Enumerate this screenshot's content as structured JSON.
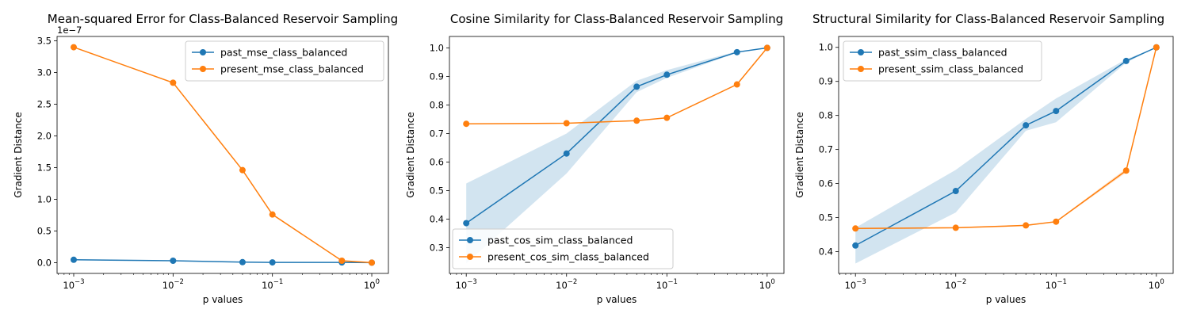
{
  "colors": {
    "past": "#1f77b4",
    "present": "#ff7f0e",
    "band": "#1f77b4"
  },
  "chart_data": [
    {
      "type": "line",
      "title": "Mean-squared Error for Class-Balanced Reservoir Sampling",
      "xlabel": "p values",
      "ylabel": "Gradient Distance",
      "xscale": "log",
      "xlim": [
        0.00068,
        1.47
      ],
      "ylim": [
        -1.7e-08,
        3.57e-07
      ],
      "y_offset_label": "1e−7",
      "xticks": [
        {
          "v": 0.001,
          "base": "10",
          "exp": "−3"
        },
        {
          "v": 0.01,
          "base": "10",
          "exp": "−2"
        },
        {
          "v": 0.1,
          "base": "10",
          "exp": "−1"
        },
        {
          "v": 1,
          "base": "10",
          "exp": "0"
        }
      ],
      "yticks": [
        {
          "v": 0,
          "label": "0.0"
        },
        {
          "v": 5e-08,
          "label": "0.5"
        },
        {
          "v": 1e-07,
          "label": "1.0"
        },
        {
          "v": 1.5e-07,
          "label": "1.5"
        },
        {
          "v": 2e-07,
          "label": "2.0"
        },
        {
          "v": 2.5e-07,
          "label": "2.5"
        },
        {
          "v": 3e-07,
          "label": "3.0"
        },
        {
          "v": 3.5e-07,
          "label": "3.5"
        }
      ],
      "legend": "upper-right",
      "x": [
        0.001,
        0.01,
        0.05,
        0.1,
        0.5,
        1
      ],
      "series": [
        {
          "name": "past_mse_class_balanced",
          "key": "past",
          "values": [
            4.5e-09,
            3e-09,
            8e-10,
            4e-10,
            3e-10,
            0
          ]
        },
        {
          "name": "present_mse_class_balanced",
          "key": "present",
          "values": [
            3.4e-07,
            2.84e-07,
            1.46e-07,
            7.6e-08,
            3e-09,
            0
          ]
        }
      ]
    },
    {
      "type": "line",
      "title": "Cosine Similarity for Class-Balanced Reservoir Sampling",
      "xlabel": "p values",
      "ylabel": "Gradient Distance",
      "xscale": "log",
      "xlim": [
        0.00068,
        1.47
      ],
      "ylim": [
        0.21,
        1.04
      ],
      "xticks": [
        {
          "v": 0.001,
          "base": "10",
          "exp": "−3"
        },
        {
          "v": 0.01,
          "base": "10",
          "exp": "−2"
        },
        {
          "v": 0.1,
          "base": "10",
          "exp": "−1"
        },
        {
          "v": 1,
          "base": "10",
          "exp": "0"
        }
      ],
      "yticks": [
        {
          "v": 0.3,
          "label": "0.3"
        },
        {
          "v": 0.4,
          "label": "0.4"
        },
        {
          "v": 0.5,
          "label": "0.5"
        },
        {
          "v": 0.6,
          "label": "0.6"
        },
        {
          "v": 0.7,
          "label": "0.7"
        },
        {
          "v": 0.8,
          "label": "0.8"
        },
        {
          "v": 0.9,
          "label": "0.9"
        },
        {
          "v": 1.0,
          "label": "1.0"
        }
      ],
      "legend": "lower-left",
      "x": [
        0.001,
        0.01,
        0.05,
        0.1,
        0.5,
        1
      ],
      "series": [
        {
          "name": "past_cos_sim_class_balanced",
          "key": "past",
          "values": [
            0.386,
            0.63,
            0.864,
            0.906,
            0.985,
            1.0
          ],
          "band_lower": [
            0.245,
            0.56,
            0.845,
            0.895,
            0.983,
            1.0
          ],
          "band_upper": [
            0.525,
            0.7,
            0.885,
            0.922,
            0.988,
            1.0
          ]
        },
        {
          "name": "present_cos_sim_class_balanced",
          "key": "present",
          "values": [
            0.734,
            0.736,
            0.745,
            0.755,
            0.872,
            1.0
          ]
        }
      ]
    },
    {
      "type": "line",
      "title": "Structural Similarity for Class-Balanced Reservoir Sampling",
      "xlabel": "p values",
      "ylabel": "Gradient Distance",
      "xscale": "log",
      "xlim": [
        0.00068,
        1.47
      ],
      "ylim": [
        0.336,
        1.032
      ],
      "xticks": [
        {
          "v": 0.001,
          "base": "10",
          "exp": "−3"
        },
        {
          "v": 0.01,
          "base": "10",
          "exp": "−2"
        },
        {
          "v": 0.1,
          "base": "10",
          "exp": "−1"
        },
        {
          "v": 1,
          "base": "10",
          "exp": "0"
        }
      ],
      "yticks": [
        {
          "v": 0.4,
          "label": "0.4"
        },
        {
          "v": 0.5,
          "label": "0.5"
        },
        {
          "v": 0.6,
          "label": "0.6"
        },
        {
          "v": 0.7,
          "label": "0.7"
        },
        {
          "v": 0.8,
          "label": "0.8"
        },
        {
          "v": 0.9,
          "label": "0.9"
        },
        {
          "v": 1.0,
          "label": "1.0"
        }
      ],
      "legend": "upper-left",
      "x": [
        0.001,
        0.01,
        0.05,
        0.1,
        0.5,
        1
      ],
      "series": [
        {
          "name": "past_ssim_class_balanced",
          "key": "past",
          "values": [
            0.418,
            0.578,
            0.771,
            0.813,
            0.96,
            1.0
          ],
          "band_lower": [
            0.365,
            0.515,
            0.755,
            0.78,
            0.955,
            1.0
          ],
          "band_upper": [
            0.47,
            0.64,
            0.79,
            0.85,
            0.965,
            1.0
          ]
        },
        {
          "name": "present_ssim_class_balanced",
          "key": "present",
          "values": [
            0.468,
            0.47,
            0.477,
            0.488,
            0.638,
            1.0
          ],
          "band_lower": [
            0.466,
            0.468,
            0.475,
            0.486,
            0.632,
            1.0
          ],
          "band_upper": [
            0.47,
            0.472,
            0.479,
            0.49,
            0.644,
            1.0
          ]
        }
      ]
    }
  ]
}
